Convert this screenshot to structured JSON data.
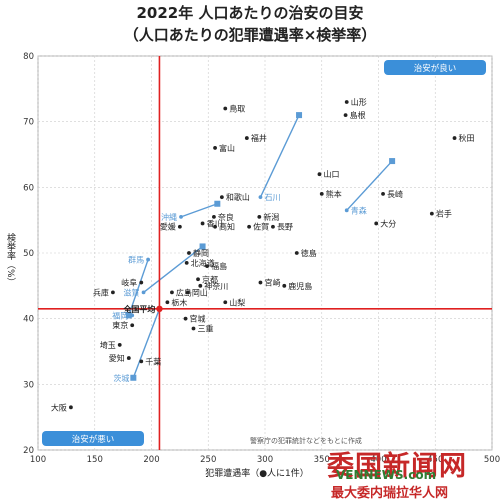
{
  "title": "2022年 人口あたりの治安の目安",
  "subtitle": "（人口あたりの犯罪遭遇率×検挙率）",
  "source_note": "警察庁の犯罪統計などをもとに作成",
  "watermark": {
    "line1": "委国新闻网",
    "line2": "VENNEWS.com",
    "line3": "最大委内瑞拉华人网"
  },
  "chart_data": {
    "type": "scatter",
    "xlabel": "犯罪遭遇率（●人に1件）",
    "ylabel": "検挙率（%）",
    "xlim": [
      100,
      500
    ],
    "ylim": [
      20,
      80
    ],
    "xticks": [
      100,
      150,
      200,
      250,
      300,
      350,
      400,
      450,
      500
    ],
    "yticks": [
      20,
      30,
      40,
      50,
      60,
      70,
      80
    ],
    "reference_lines": {
      "x": 207,
      "y": 41.5,
      "label": "全国平均"
    },
    "badges": {
      "good": "治安が良い",
      "bad": "治安が悪い"
    },
    "colors": {
      "red": "#e02020",
      "blue": "#5b9bd5",
      "dot": "#222222",
      "badge": "#3b8fd9"
    },
    "points": [
      {
        "name": "鳥取",
        "x": 265,
        "y": 72
      },
      {
        "name": "山形",
        "x": 372,
        "y": 73
      },
      {
        "name": "島根",
        "x": 371,
        "y": 71
      },
      {
        "name": "秋田",
        "x": 467,
        "y": 67.5
      },
      {
        "name": "福井",
        "x": 284,
        "y": 67.5
      },
      {
        "name": "富山",
        "x": 256,
        "y": 66
      },
      {
        "name": "山口",
        "x": 348,
        "y": 62
      },
      {
        "name": "和歌山",
        "x": 262,
        "y": 58.5
      },
      {
        "name": "熊本",
        "x": 350,
        "y": 59
      },
      {
        "name": "長崎",
        "x": 404,
        "y": 59
      },
      {
        "name": "石川",
        "x": 296,
        "y": 58.5
      },
      {
        "name": "沖縄",
        "x": 226,
        "y": 55.5
      },
      {
        "name": "香川",
        "x": 245,
        "y": 54.5
      },
      {
        "name": "愛媛",
        "x": 225,
        "y": 54
      },
      {
        "name": "奈良",
        "x": 255,
        "y": 55.5
      },
      {
        "name": "新潟",
        "x": 295,
        "y": 55.5
      },
      {
        "name": "青森",
        "x": 372,
        "y": 56.5
      },
      {
        "name": "岩手",
        "x": 447,
        "y": 56
      },
      {
        "name": "高知",
        "x": 256,
        "y": 54
      },
      {
        "name": "佐賀",
        "x": 286,
        "y": 54
      },
      {
        "name": "長野",
        "x": 307,
        "y": 54
      },
      {
        "name": "大分",
        "x": 398,
        "y": 54.5
      },
      {
        "name": "静岡",
        "x": 233,
        "y": 50
      },
      {
        "name": "徳島",
        "x": 328,
        "y": 50
      },
      {
        "name": "群馬",
        "x": 197,
        "y": 49
      },
      {
        "name": "北海道",
        "x": 231,
        "y": 48.5
      },
      {
        "name": "福島",
        "x": 249,
        "y": 48
      },
      {
        "name": "京都",
        "x": 241,
        "y": 46
      },
      {
        "name": "岐阜",
        "x": 191,
        "y": 45.5
      },
      {
        "name": "宮崎",
        "x": 296,
        "y": 45.5
      },
      {
        "name": "神奈川",
        "x": 243,
        "y": 45
      },
      {
        "name": "鹿児島",
        "x": 317,
        "y": 45
      },
      {
        "name": "滋賀",
        "x": 193,
        "y": 44
      },
      {
        "name": "広島",
        "x": 218,
        "y": 44
      },
      {
        "name": "岡山",
        "x": 232,
        "y": 44
      },
      {
        "name": "兵庫",
        "x": 166,
        "y": 44
      },
      {
        "name": "山梨",
        "x": 265,
        "y": 42.5
      },
      {
        "name": "栃木",
        "x": 214,
        "y": 42.5
      },
      {
        "name": "全国平均",
        "x": 207,
        "y": 41.5
      },
      {
        "name": "福岡",
        "x": 183,
        "y": 40.5
      },
      {
        "name": "宮城",
        "x": 230,
        "y": 40
      },
      {
        "name": "東京",
        "x": 183,
        "y": 39
      },
      {
        "name": "三重",
        "x": 237,
        "y": 38.5
      },
      {
        "name": "埼玉",
        "x": 172,
        "y": 36
      },
      {
        "name": "愛知",
        "x": 180,
        "y": 34
      },
      {
        "name": "千葉",
        "x": 191,
        "y": 33.5
      },
      {
        "name": "茨城",
        "x": 184,
        "y": 31
      },
      {
        "name": "大阪",
        "x": 129,
        "y": 26.5
      }
    ],
    "trend_arrows": [
      {
        "from": [
          296,
          58.5
        ],
        "to": [
          330,
          71
        ]
      },
      {
        "from": [
          372,
          56.5
        ],
        "to": [
          412,
          64
        ]
      },
      {
        "from": [
          226,
          55.5
        ],
        "to": [
          258,
          57.5
        ]
      },
      {
        "from": [
          197,
          49
        ],
        "to": [
          180,
          40.5
        ]
      },
      {
        "from": [
          193,
          44
        ],
        "to": [
          245,
          51
        ]
      },
      {
        "from": [
          207,
          41.5
        ],
        "to": [
          184,
          31
        ]
      }
    ]
  }
}
